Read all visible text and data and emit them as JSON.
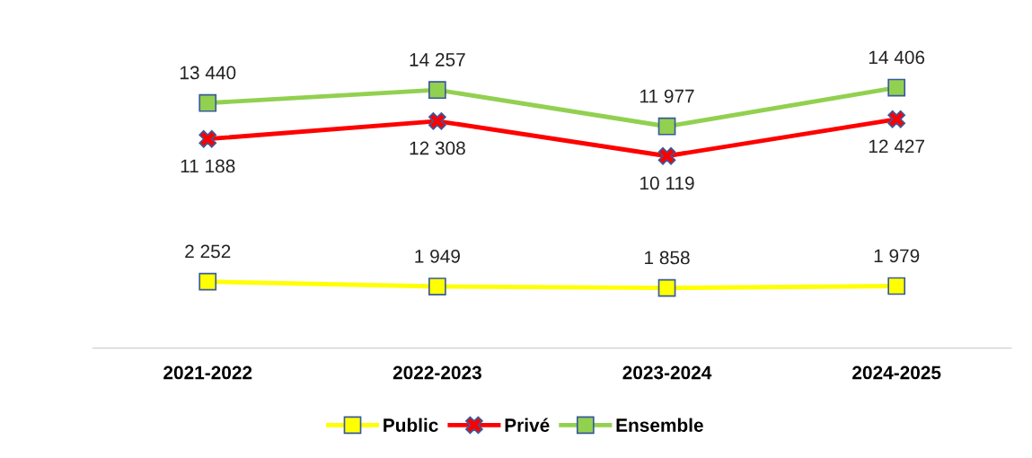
{
  "chart_data": {
    "type": "line",
    "categories": [
      "2021-2022",
      "2022-2023",
      "2023-2024",
      "2024-2025"
    ],
    "series": [
      {
        "name": "Public",
        "color": "#ffff00",
        "marker": "square",
        "values": [
          2252,
          1949,
          1858,
          1979
        ],
        "value_labels": [
          "2 252",
          "1 949",
          "1 858",
          "1 979"
        ]
      },
      {
        "name": "Privé",
        "color": "#ff0000",
        "marker": "cross",
        "values": [
          11188,
          12308,
          10119,
          12427
        ],
        "value_labels": [
          "11 188",
          "12 308",
          "10 119",
          "12 427"
        ]
      },
      {
        "name": "Ensemble",
        "color": "#92d050",
        "marker": "square",
        "values": [
          13440,
          14257,
          11977,
          14406
        ],
        "value_labels": [
          "13 440",
          "14 257",
          "11 977",
          "14 406"
        ]
      }
    ],
    "tick_labels": "x",
    "legend": "bottom",
    "grid": false
  }
}
